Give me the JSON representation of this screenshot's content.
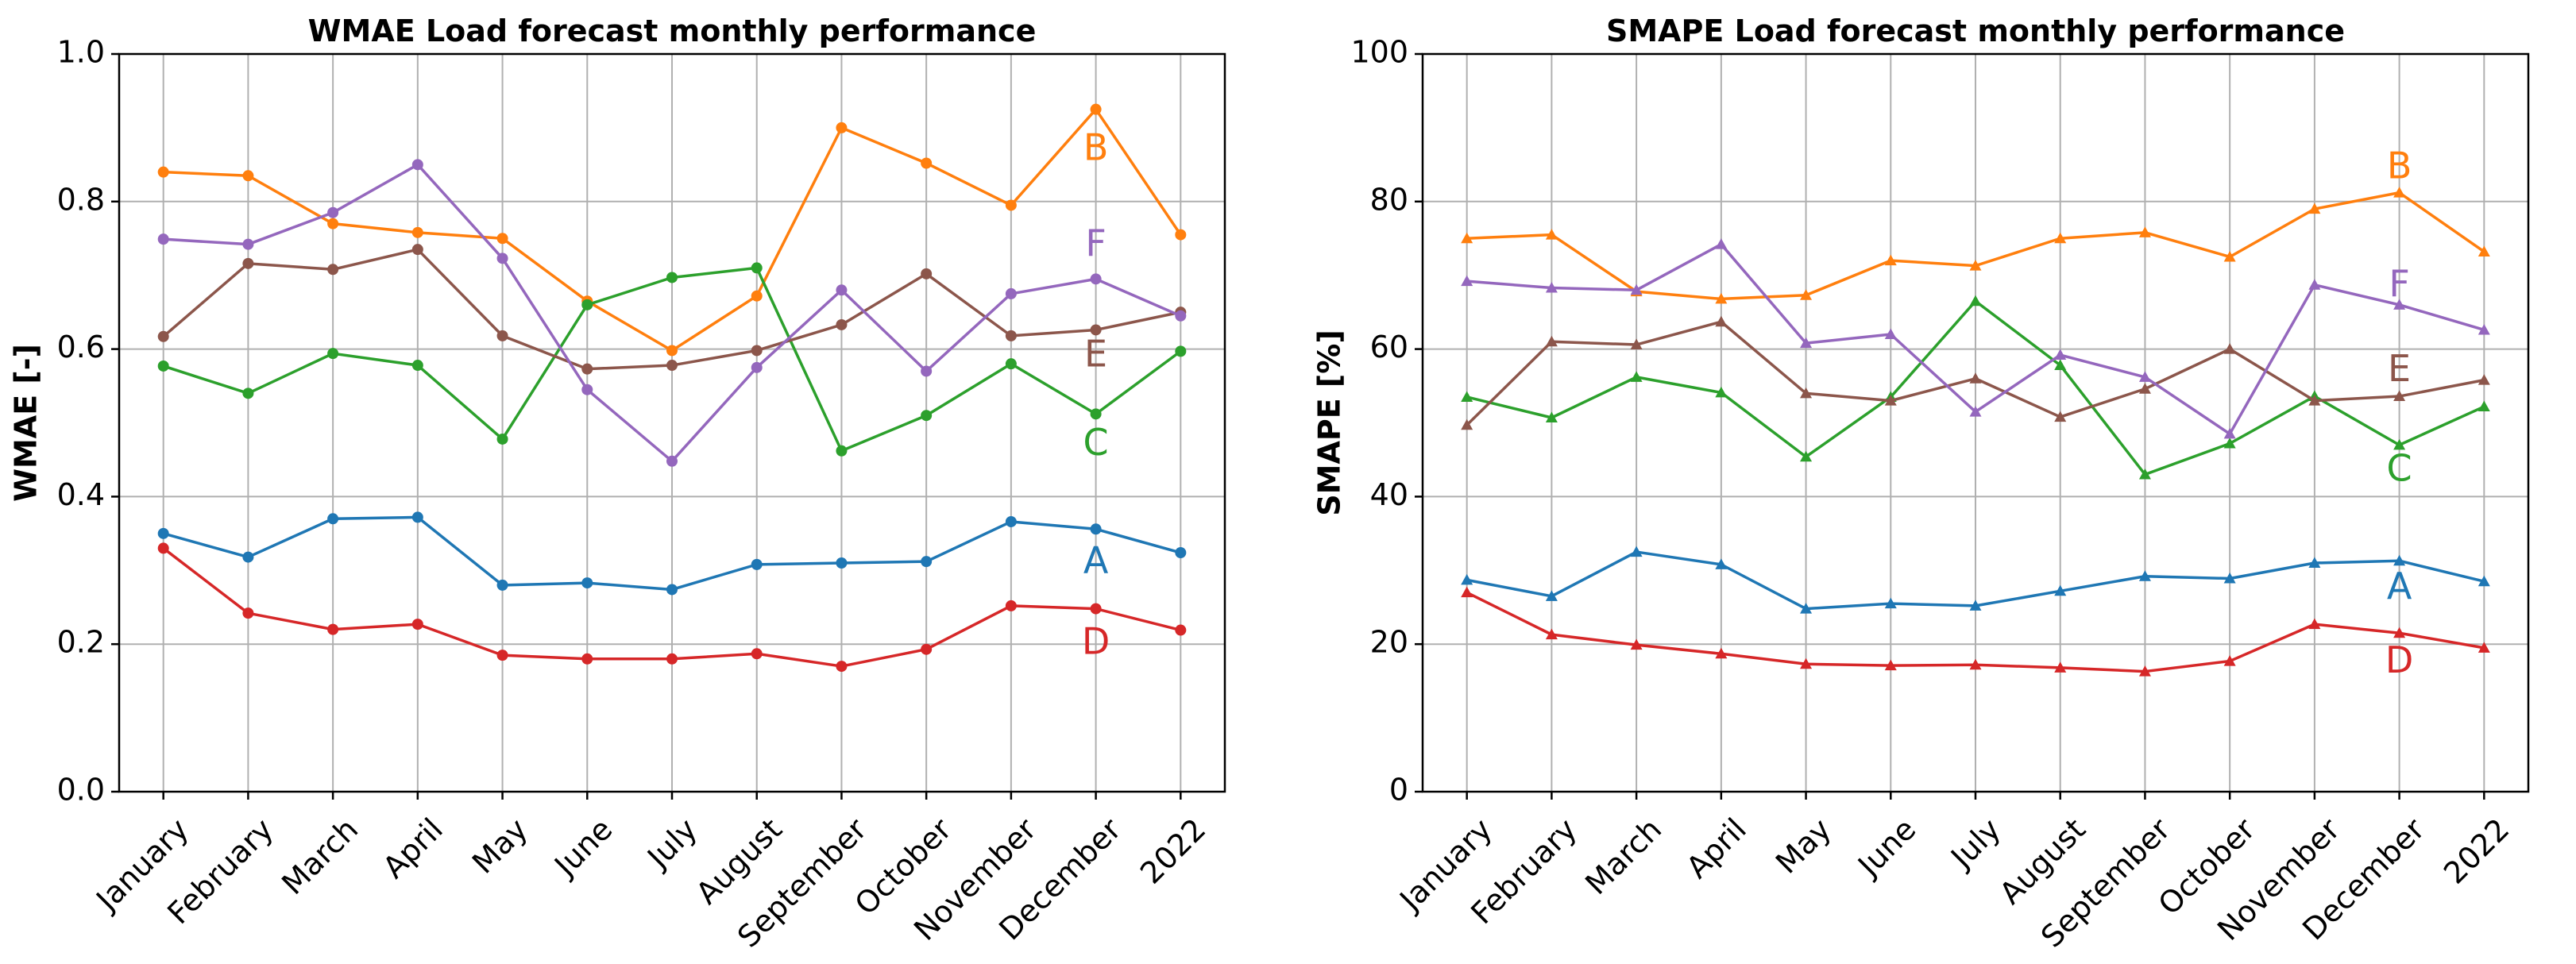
{
  "chart_data": [
    {
      "type": "line",
      "title": "WMAE Load forecast monthly performance",
      "xlabel": "",
      "ylabel": "WMAE [-]",
      "ylim": [
        0.0,
        1.0
      ],
      "yticks": [
        "0.0",
        "0.2",
        "0.4",
        "0.6",
        "0.8",
        "1.0"
      ],
      "yticks_values": [
        0.0,
        0.2,
        0.4,
        0.6,
        0.8,
        1.0
      ],
      "grid": true,
      "marker": "circle",
      "categories": [
        "January",
        "February",
        "March",
        "April",
        "May",
        "June",
        "July",
        "August",
        "September",
        "October",
        "November",
        "December",
        "2022"
      ],
      "series": [
        {
          "name": "A",
          "color": "#1f77b4",
          "label_value": 0.31,
          "values": [
            0.35,
            0.318,
            0.37,
            0.372,
            0.28,
            0.283,
            0.274,
            0.308,
            0.31,
            0.312,
            0.366,
            0.356,
            0.324
          ]
        },
        {
          "name": "B",
          "color": "#ff7f0e",
          "label_value": 0.87,
          "values": [
            0.84,
            0.835,
            0.77,
            0.758,
            0.75,
            0.665,
            0.598,
            0.672,
            0.9,
            0.852,
            0.795,
            0.925,
            0.755
          ]
        },
        {
          "name": "C",
          "color": "#2ca02c",
          "label_value": 0.47,
          "values": [
            0.577,
            0.54,
            0.594,
            0.578,
            0.478,
            0.66,
            0.697,
            0.71,
            0.462,
            0.51,
            0.58,
            0.512,
            0.597
          ]
        },
        {
          "name": "D",
          "color": "#d62728",
          "label_value": 0.2,
          "values": [
            0.33,
            0.242,
            0.22,
            0.227,
            0.185,
            0.18,
            0.18,
            0.187,
            0.17,
            0.193,
            0.252,
            0.248,
            0.219
          ]
        },
        {
          "name": "E",
          "color": "#8c564b",
          "label_value": 0.59,
          "values": [
            0.617,
            0.716,
            0.708,
            0.735,
            0.618,
            0.573,
            0.578,
            0.598,
            0.633,
            0.702,
            0.618,
            0.626,
            0.65
          ]
        },
        {
          "name": "F",
          "color": "#9467bd",
          "label_value": 0.74,
          "values": [
            0.749,
            0.742,
            0.785,
            0.85,
            0.723,
            0.545,
            0.448,
            0.575,
            0.68,
            0.57,
            0.675,
            0.695,
            0.645
          ]
        }
      ]
    },
    {
      "type": "line",
      "title": "SMAPE Load forecast monthly performance",
      "xlabel": "",
      "ylabel": "SMAPE [%]",
      "ylim": [
        0,
        100
      ],
      "yticks": [
        "0",
        "20",
        "40",
        "60",
        "80",
        "100"
      ],
      "yticks_values": [
        0,
        20,
        40,
        60,
        80,
        100
      ],
      "grid": true,
      "marker": "triangle",
      "categories": [
        "January",
        "February",
        "March",
        "April",
        "May",
        "June",
        "July",
        "August",
        "September",
        "October",
        "November",
        "December",
        "2022"
      ],
      "series": [
        {
          "name": "A",
          "color": "#1f77b4",
          "label_value": 27.5,
          "values": [
            28.7,
            26.5,
            32.5,
            30.8,
            24.8,
            25.5,
            25.2,
            27.2,
            29.2,
            28.9,
            31.0,
            31.3,
            28.5
          ]
        },
        {
          "name": "B",
          "color": "#ff7f0e",
          "label_value": 84.5,
          "values": [
            75.0,
            75.5,
            67.8,
            66.8,
            67.3,
            72.0,
            71.3,
            75.0,
            75.8,
            72.5,
            79.0,
            81.2,
            73.2
          ]
        },
        {
          "name": "C",
          "color": "#2ca02c",
          "label_value": 43.5,
          "values": [
            53.5,
            50.7,
            56.2,
            54.1,
            45.4,
            53.5,
            66.5,
            57.8,
            43.0,
            47.2,
            53.6,
            47.0,
            52.2
          ]
        },
        {
          "name": "D",
          "color": "#d62728",
          "label_value": 17.5,
          "values": [
            27.0,
            21.3,
            19.9,
            18.7,
            17.3,
            17.1,
            17.2,
            16.8,
            16.3,
            17.7,
            22.7,
            21.5,
            19.5
          ]
        },
        {
          "name": "E",
          "color": "#8c564b",
          "label_value": 57.0,
          "values": [
            49.7,
            61.0,
            60.6,
            63.7,
            54.0,
            53.0,
            56.0,
            50.8,
            54.6,
            60.0,
            53.0,
            53.6,
            55.8
          ]
        },
        {
          "name": "F",
          "color": "#9467bd",
          "label_value": 68.5,
          "values": [
            69.2,
            68.3,
            68.0,
            74.2,
            60.8,
            62.0,
            51.5,
            59.2,
            56.2,
            48.5,
            68.7,
            66.0,
            62.6
          ]
        }
      ]
    }
  ]
}
